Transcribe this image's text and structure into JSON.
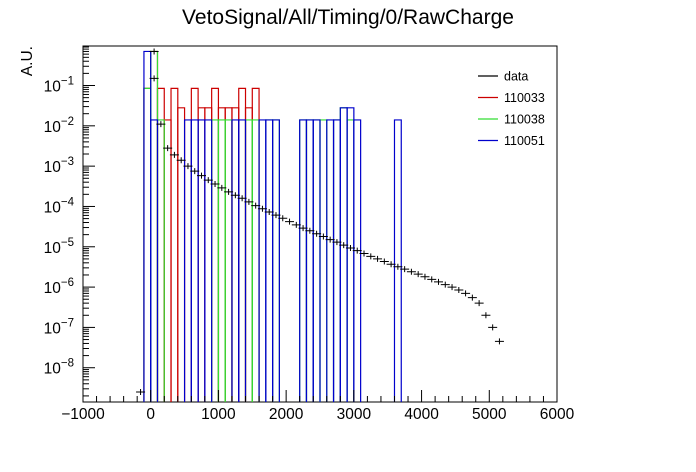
{
  "chart_data": {
    "type": "histogram",
    "title": "VetoSignal/All/Timing/0/RawCharge",
    "xlabel": "",
    "ylabel": "A.U.",
    "xlim": [
      -1000,
      6000
    ],
    "ylim_log10": [
      -8.85,
      -0.02
    ],
    "yscale": "log",
    "legend_position": "top-right",
    "x_ticks": [
      -1000,
      0,
      1000,
      2000,
      3000,
      4000,
      5000,
      6000
    ],
    "x_tick_labels": [
      "−1000",
      "0",
      "1000",
      "2000",
      "3000",
      "4000",
      "5000",
      "6000"
    ],
    "y_ticks": [
      -8,
      -7,
      -6,
      -5,
      -4,
      -3,
      -2,
      -1
    ],
    "y_tick_labels": [
      {
        "base": "10",
        "exp": "−8"
      },
      {
        "base": "10",
        "exp": "−7"
      },
      {
        "base": "10",
        "exp": "−6"
      },
      {
        "base": "10",
        "exp": "−5"
      },
      {
        "base": "10",
        "exp": "−4"
      },
      {
        "base": "10",
        "exp": "−3"
      },
      {
        "base": "10",
        "exp": "−2"
      },
      {
        "base": "10",
        "exp": "−1"
      }
    ],
    "data_points": [
      [
        -150,
        2.5e-09
      ],
      [
        50,
        0.7
      ],
      [
        50,
        0.15
      ],
      [
        150,
        0.011
      ],
      [
        250,
        0.0028
      ],
      [
        350,
        0.0019
      ],
      [
        450,
        0.0014
      ],
      [
        550,
        0.001
      ],
      [
        650,
        0.00075
      ],
      [
        750,
        0.00058
      ],
      [
        850,
        0.00045
      ],
      [
        950,
        0.00036
      ],
      [
        1050,
        0.00029
      ],
      [
        1150,
        0.00023
      ],
      [
        1250,
        0.00019
      ],
      [
        1350,
        0.00016
      ],
      [
        1450,
        0.00013
      ],
      [
        1550,
        0.000105
      ],
      [
        1650,
        8.8e-05
      ],
      [
        1750,
        7.3e-05
      ],
      [
        1850,
        6.1e-05
      ],
      [
        1950,
        5.1e-05
      ],
      [
        2050,
        4.2e-05
      ],
      [
        2150,
        3.5e-05
      ],
      [
        2250,
        2.9e-05
      ],
      [
        2350,
        2.5e-05
      ],
      [
        2450,
        2.1e-05
      ],
      [
        2550,
        1.8e-05
      ],
      [
        2650,
        1.5e-05
      ],
      [
        2750,
        1.3e-05
      ],
      [
        2850,
        1.1e-05
      ],
      [
        2950,
        9.3e-06
      ],
      [
        3050,
        8e-06
      ],
      [
        3150,
        6.8e-06
      ],
      [
        3250,
        5.8e-06
      ],
      [
        3350,
        5e-06
      ],
      [
        3450,
        4.3e-06
      ],
      [
        3550,
        3.7e-06
      ],
      [
        3650,
        3.2e-06
      ],
      [
        3750,
        2.8e-06
      ],
      [
        3850,
        2.4e-06
      ],
      [
        3950,
        2.1e-06
      ],
      [
        4050,
        1.8e-06
      ],
      [
        4150,
        1.55e-06
      ],
      [
        4250,
        1.35e-06
      ],
      [
        4350,
        1.15e-06
      ],
      [
        4450,
        1e-06
      ],
      [
        4550,
        8.5e-07
      ],
      [
        4650,
        7e-07
      ],
      [
        4750,
        5.5e-07
      ],
      [
        4850,
        4e-07
      ],
      [
        4950,
        2e-07
      ],
      [
        5050,
        1e-07
      ],
      [
        5150,
        4.5e-08
      ]
    ],
    "series": [
      {
        "name": "data",
        "color": "#000000",
        "style": "points-with-errors"
      },
      {
        "name": "110033",
        "color": "#cc0000",
        "style": "step",
        "bins": [
          [
            -100,
            0,
            0.085
          ],
          [
            0,
            100,
            0.7
          ],
          [
            100,
            200,
            0.085
          ],
          [
            200,
            300,
            0.014
          ],
          [
            300,
            400,
            0.085
          ],
          [
            400,
            500,
            0.028
          ],
          [
            500,
            600,
            0.0
          ],
          [
            600,
            700,
            0.085
          ],
          [
            700,
            800,
            0.028
          ],
          [
            800,
            900,
            0.028
          ],
          [
            900,
            1000,
            0.085
          ],
          [
            1000,
            1100,
            0.028
          ],
          [
            1100,
            1200,
            0.028
          ],
          [
            1200,
            1300,
            0.028
          ],
          [
            1300,
            1400,
            0.085
          ],
          [
            1400,
            1500,
            0.028
          ],
          [
            1500,
            1600,
            0.085
          ],
          [
            1600,
            1700,
            0.0
          ]
        ]
      },
      {
        "name": "110038",
        "color": "#33dd33",
        "style": "step",
        "bins": [
          [
            -100,
            0,
            0.085
          ],
          [
            0,
            100,
            0.7
          ],
          [
            100,
            200,
            0.014
          ],
          [
            900,
            1000,
            0.014
          ],
          [
            1000,
            1100,
            0.014
          ],
          [
            1100,
            1200,
            0.014
          ],
          [
            1400,
            1500,
            0.014
          ],
          [
            1500,
            1600,
            0.014
          ],
          [
            1700,
            1800,
            0.014
          ],
          [
            1800,
            1900,
            0.014
          ],
          [
            2200,
            2300,
            0.014
          ],
          [
            2300,
            2400,
            0.014
          ],
          [
            2400,
            2500,
            0.014
          ],
          [
            2500,
            2600,
            0.014
          ],
          [
            2700,
            2800,
            0.014
          ],
          [
            2800,
            2900,
            0.028
          ],
          [
            2900,
            3000,
            0.014
          ]
        ]
      },
      {
        "name": "110051",
        "color": "#0000cc",
        "style": "step",
        "bins": [
          [
            -100,
            0,
            0.7
          ],
          [
            0,
            100,
            0.014
          ],
          [
            500,
            600,
            0.014
          ],
          [
            600,
            700,
            0.014
          ],
          [
            700,
            800,
            0.014
          ],
          [
            800,
            900,
            0.014
          ],
          [
            1200,
            1300,
            0.014
          ],
          [
            1300,
            1400,
            0.014
          ],
          [
            1600,
            1700,
            0.014
          ],
          [
            1700,
            1800,
            0.014
          ],
          [
            1800,
            1900,
            0.014
          ],
          [
            2200,
            2300,
            0.014
          ],
          [
            2300,
            2400,
            0.014
          ],
          [
            2400,
            2500,
            0.014
          ],
          [
            2600,
            2700,
            0.014
          ],
          [
            2700,
            2800,
            0.014
          ],
          [
            2800,
            2900,
            0.028
          ],
          [
            2900,
            3000,
            0.028
          ],
          [
            3000,
            3100,
            0.014
          ],
          [
            3600,
            3700,
            0.014
          ]
        ]
      }
    ]
  }
}
